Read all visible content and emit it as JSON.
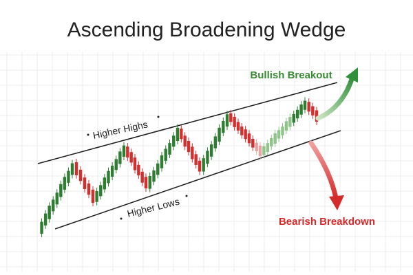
{
  "header": {
    "title": "Ascending Broadening Wedge"
  },
  "labels": {
    "upper": "Higher Highs",
    "lower": "Higher Lows",
    "bullish": "Bullish Breakout",
    "bearish": "Bearish Breakdown"
  }
}
